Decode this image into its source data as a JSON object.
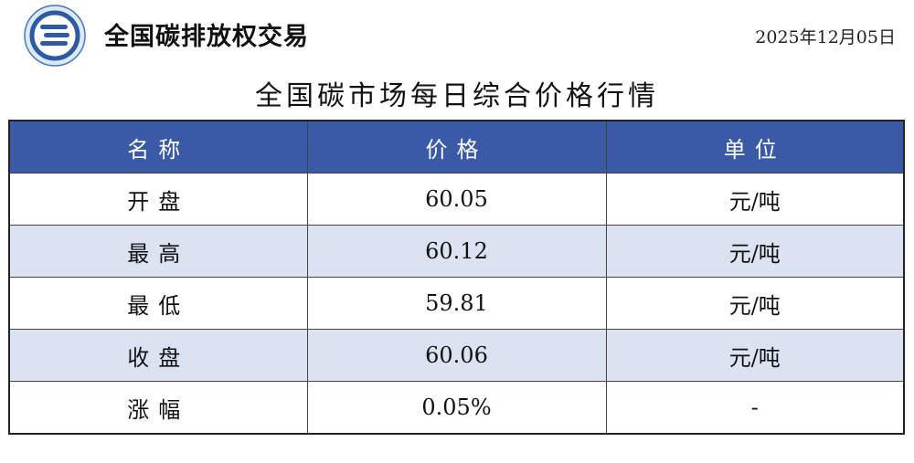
{
  "header": {
    "brand": "全国碳排放权交易",
    "date": "2025年12月05日",
    "logo_icon": "carbon-exchange-logo"
  },
  "title": "全国碳市场每日综合价格行情",
  "colors": {
    "header_bg": "#3a5aa6",
    "alt_row": "#dbe3f3"
  },
  "table": {
    "columns": [
      "名称",
      "价格",
      "单位"
    ],
    "rows": [
      {
        "name": "开盘",
        "price": "60.05",
        "unit": "元/吨"
      },
      {
        "name": "最高",
        "price": "60.12",
        "unit": "元/吨"
      },
      {
        "name": "最低",
        "price": "59.81",
        "unit": "元/吨"
      },
      {
        "name": "收盘",
        "price": "60.06",
        "unit": "元/吨"
      },
      {
        "name": "涨幅",
        "price": "0.05%",
        "unit": "-"
      }
    ]
  }
}
